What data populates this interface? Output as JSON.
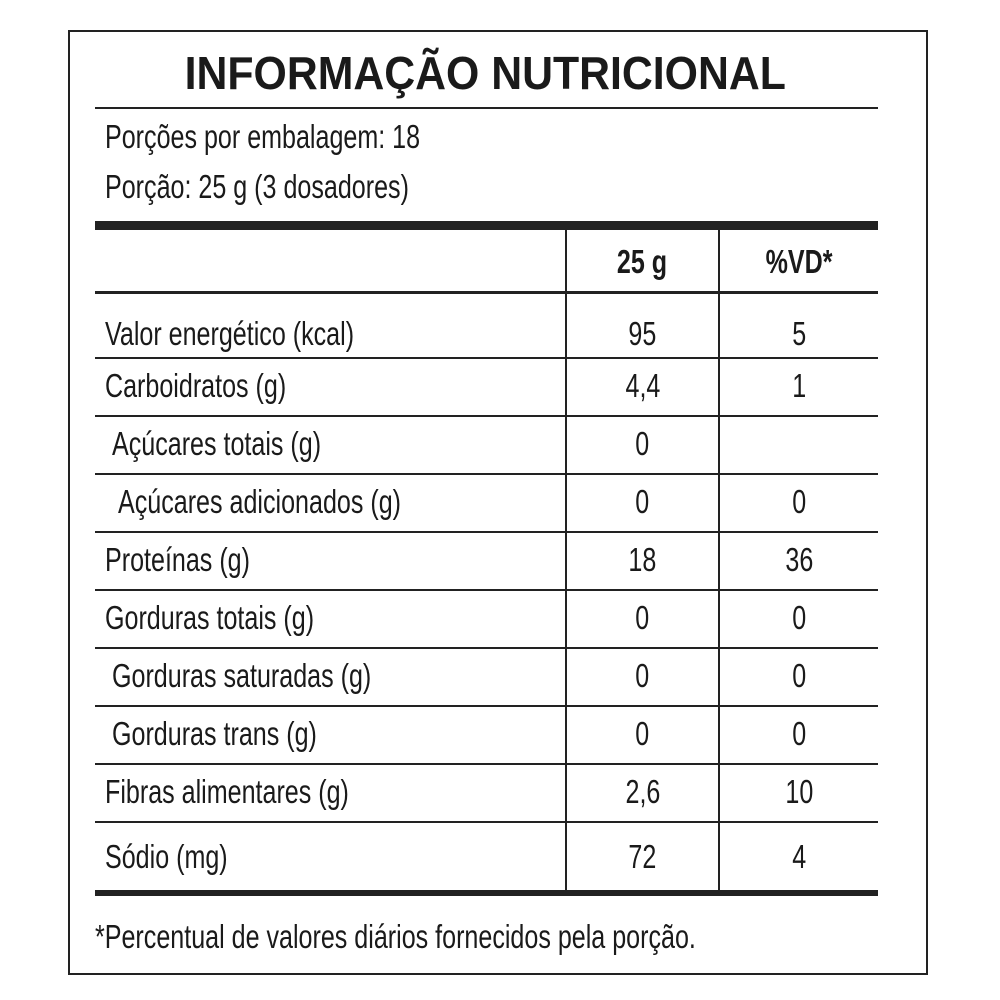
{
  "title": "INFORMAÇÃO NUTRICIONAL",
  "servings_per_package": "Porções por embalagem: 18",
  "serving_size": "Porção: 25 g (3 dosadores)",
  "columns": [
    "25 g",
    "%VD*"
  ],
  "rows": [
    {
      "label": "Valor energético (kcal)",
      "amount": "95",
      "dv": "5"
    },
    {
      "label": "Carboidratos (g)",
      "amount": "4,4",
      "dv": "1"
    },
    {
      "label": "Açúcares totais (g)",
      "amount": "0",
      "dv": ""
    },
    {
      "label": "Açúcares adicionados (g)",
      "amount": "0",
      "dv": "0"
    },
    {
      "label": "Proteínas (g)",
      "amount": "18",
      "dv": "36"
    },
    {
      "label": "Gorduras totais (g)",
      "amount": "0",
      "dv": "0"
    },
    {
      "label": "Gorduras saturadas (g)",
      "amount": "0",
      "dv": "0"
    },
    {
      "label": "Gorduras trans (g)",
      "amount": "0",
      "dv": "0"
    },
    {
      "label": "Fibras alimentares (g)",
      "amount": "2,6",
      "dv": "10"
    },
    {
      "label": "Sódio (mg)",
      "amount": "72",
      "dv": "4"
    }
  ],
  "footnote": "*Percentual de valores diários fornecidos pela porção."
}
